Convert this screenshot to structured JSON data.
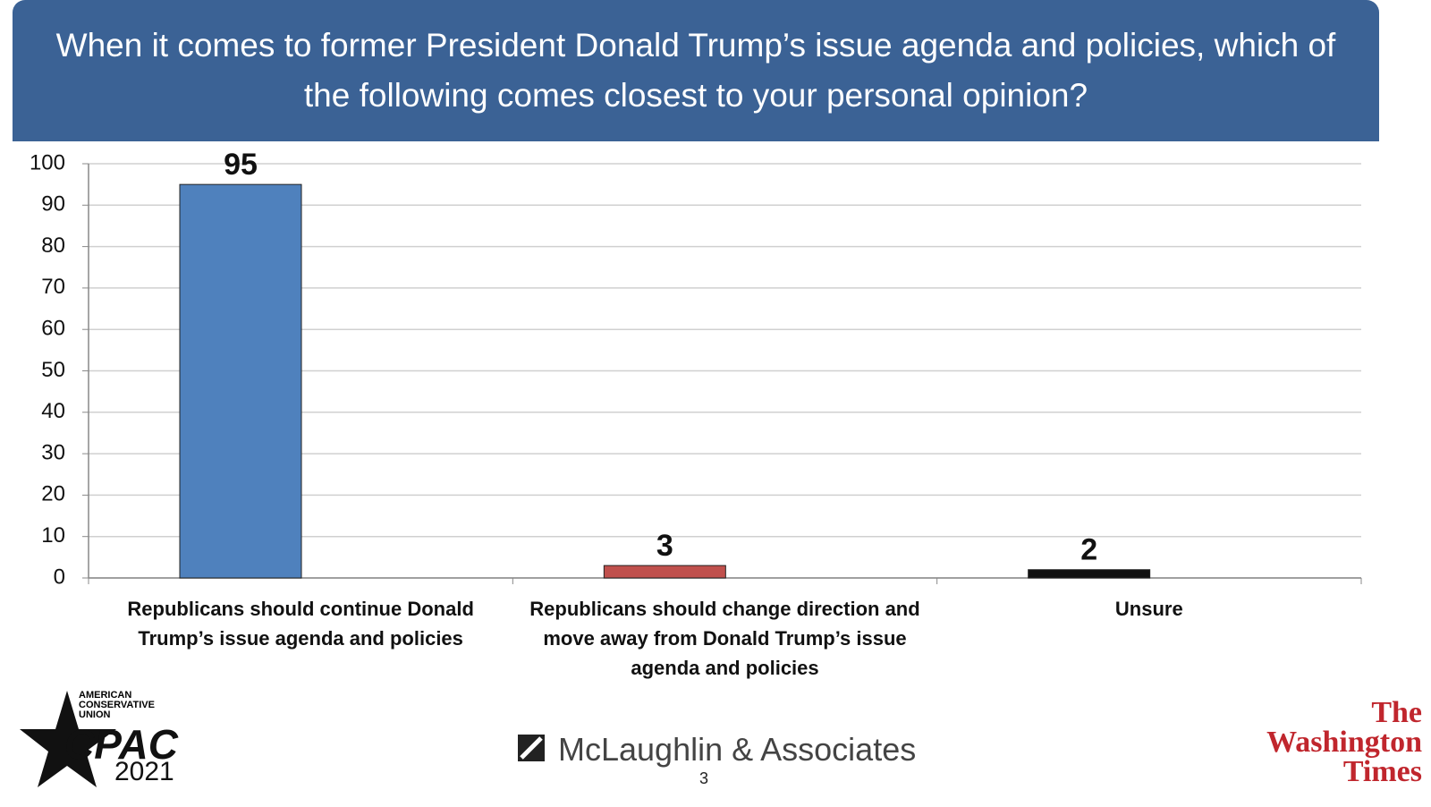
{
  "chart_data": {
    "type": "bar",
    "title": "When it comes to former President Donald Trump’s issue agenda and policies, which of the following comes closest to your personal opinion?",
    "categories": [
      "Republicans should continue Donald Trump’s issue agenda and policies",
      "Republicans should change direction and move away from Donald Trump’s issue agenda and policies",
      "Unsure"
    ],
    "values": [
      95,
      3,
      2
    ],
    "colors": [
      "#4f81bd",
      "#c0504d",
      "#111111"
    ],
    "ylim": [
      0,
      100
    ],
    "yticks": [
      0,
      10,
      20,
      30,
      40,
      50,
      60,
      70,
      80,
      90,
      100
    ],
    "grid": true
  },
  "footer": {
    "org_name": "AMERICAN CONSERVATIVE UNION",
    "org_logo": "CPAC",
    "year": "2021",
    "pollster": "McLaughlin & Associates",
    "page_number": "3",
    "publisher": "The Washington Times"
  }
}
